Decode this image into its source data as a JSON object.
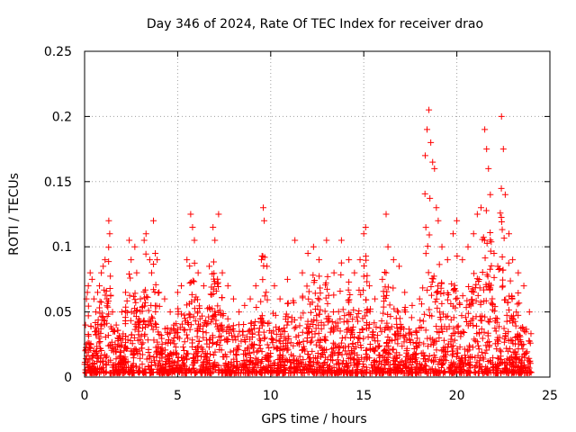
{
  "chart_data": {
    "type": "scatter",
    "title": "Day 346 of 2024, Rate Of TEC Index for receiver drao",
    "xlabel": "GPS time / hours",
    "ylabel": "ROTI / TECUs",
    "xlim": [
      0,
      25
    ],
    "ylim": [
      0,
      0.25
    ],
    "x_ticks": [
      0,
      5,
      10,
      15,
      20,
      25
    ],
    "x_tick_labels": [
      "0",
      "5",
      "10",
      "15",
      "20",
      "25"
    ],
    "y_ticks": [
      0,
      0.05,
      0.1,
      0.15,
      0.2,
      0.25
    ],
    "y_tick_labels": [
      "0",
      "0.05",
      "0.1",
      "0.15",
      "0.2",
      "0.25"
    ],
    "grid": true,
    "marker": "+",
    "color": "#ff0000",
    "x_extent": [
      0.0,
      24.0
    ],
    "points": [
      [
        0.05,
        0.04
      ],
      [
        0.1,
        0.06
      ],
      [
        0.15,
        0.065
      ],
      [
        0.2,
        0.07
      ],
      [
        0.3,
        0.08
      ],
      [
        0.4,
        0.075
      ],
      [
        0.5,
        0.06
      ],
      [
        0.6,
        0.05
      ],
      [
        0.7,
        0.065
      ],
      [
        0.8,
        0.07
      ],
      [
        0.9,
        0.08
      ],
      [
        1.0,
        0.085
      ],
      [
        1.1,
        0.09
      ],
      [
        1.2,
        0.06
      ],
      [
        1.3,
        0.12
      ],
      [
        1.35,
        0.11
      ],
      [
        1.5,
        0.05
      ],
      [
        1.7,
        0.04
      ],
      [
        1.9,
        0.03
      ],
      [
        2.0,
        0.05
      ],
      [
        2.2,
        0.065
      ],
      [
        2.4,
        0.105
      ],
      [
        2.5,
        0.09
      ],
      [
        2.7,
        0.1
      ],
      [
        2.8,
        0.08
      ],
      [
        3.0,
        0.06
      ],
      [
        3.2,
        0.105
      ],
      [
        3.3,
        0.11
      ],
      [
        3.5,
        0.09
      ],
      [
        3.6,
        0.08
      ],
      [
        3.7,
        0.12
      ],
      [
        3.8,
        0.095
      ],
      [
        3.9,
        0.09
      ],
      [
        4.0,
        0.065
      ],
      [
        4.3,
        0.06
      ],
      [
        4.6,
        0.05
      ],
      [
        4.8,
        0.04
      ],
      [
        5.0,
        0.065
      ],
      [
        5.2,
        0.07
      ],
      [
        5.5,
        0.09
      ],
      [
        5.7,
        0.125
      ],
      [
        5.8,
        0.115
      ],
      [
        5.9,
        0.105
      ],
      [
        6.1,
        0.08
      ],
      [
        6.4,
        0.07
      ],
      [
        6.7,
        0.085
      ],
      [
        6.9,
        0.115
      ],
      [
        7.0,
        0.105
      ],
      [
        7.2,
        0.125
      ],
      [
        7.4,
        0.08
      ],
      [
        7.7,
        0.07
      ],
      [
        8.0,
        0.06
      ],
      [
        8.3,
        0.05
      ],
      [
        8.6,
        0.055
      ],
      [
        8.9,
        0.06
      ],
      [
        9.2,
        0.07
      ],
      [
        9.5,
        0.09
      ],
      [
        9.6,
        0.13
      ],
      [
        9.65,
        0.12
      ],
      [
        9.8,
        0.085
      ],
      [
        10.2,
        0.07
      ],
      [
        10.5,
        0.06
      ],
      [
        10.9,
        0.075
      ],
      [
        11.3,
        0.105
      ],
      [
        11.7,
        0.08
      ],
      [
        12.0,
        0.095
      ],
      [
        12.3,
        0.1
      ],
      [
        12.6,
        0.09
      ],
      [
        13.0,
        0.105
      ],
      [
        13.4,
        0.08
      ],
      [
        13.8,
        0.105
      ],
      [
        14.2,
        0.09
      ],
      [
        14.5,
        0.08
      ],
      [
        14.8,
        0.09
      ],
      [
        15.0,
        0.11
      ],
      [
        15.1,
        0.115
      ],
      [
        15.3,
        0.07
      ],
      [
        15.6,
        0.06
      ],
      [
        16.0,
        0.075
      ],
      [
        16.2,
        0.125
      ],
      [
        16.3,
        0.1
      ],
      [
        16.6,
        0.09
      ],
      [
        16.9,
        0.085
      ],
      [
        17.2,
        0.065
      ],
      [
        17.6,
        0.055
      ],
      [
        18.0,
        0.06
      ],
      [
        18.3,
        0.17
      ],
      [
        18.4,
        0.19
      ],
      [
        18.5,
        0.205
      ],
      [
        18.6,
        0.18
      ],
      [
        18.7,
        0.165
      ],
      [
        18.8,
        0.16
      ],
      [
        18.9,
        0.13
      ],
      [
        19.0,
        0.12
      ],
      [
        19.2,
        0.1
      ],
      [
        19.5,
        0.09
      ],
      [
        19.8,
        0.11
      ],
      [
        20.0,
        0.12
      ],
      [
        20.3,
        0.09
      ],
      [
        20.6,
        0.1
      ],
      [
        20.9,
        0.11
      ],
      [
        21.1,
        0.125
      ],
      [
        21.3,
        0.13
      ],
      [
        21.5,
        0.19
      ],
      [
        21.6,
        0.175
      ],
      [
        21.7,
        0.16
      ],
      [
        21.8,
        0.14
      ],
      [
        22.0,
        0.095
      ],
      [
        22.2,
        0.085
      ],
      [
        22.4,
        0.2
      ],
      [
        22.5,
        0.175
      ],
      [
        22.6,
        0.14
      ],
      [
        22.8,
        0.11
      ],
      [
        23.0,
        0.09
      ],
      [
        23.3,
        0.08
      ],
      [
        23.6,
        0.07
      ],
      [
        23.9,
        0.05
      ]
    ]
  }
}
